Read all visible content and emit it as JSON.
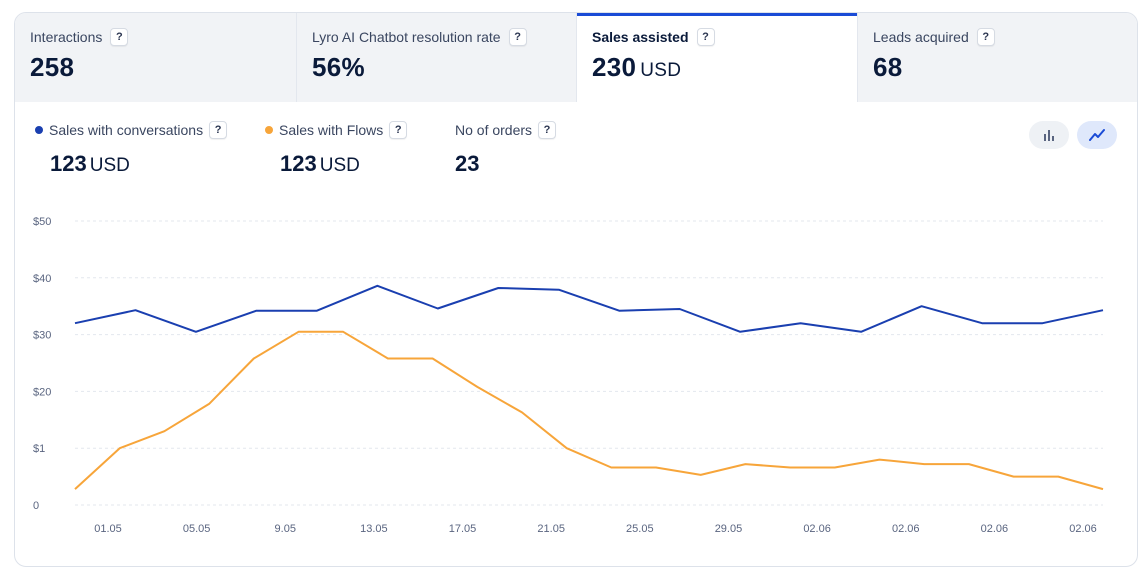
{
  "tabs": [
    {
      "label": "Interactions",
      "value": "258",
      "unit": "",
      "help": "?"
    },
    {
      "label": "Lyro AI Chatbot resolution rate",
      "value": "56%",
      "unit": "",
      "help": "?"
    },
    {
      "label": "Sales assisted",
      "value": "230",
      "unit": "USD",
      "help": "?",
      "active": true
    },
    {
      "label": "Leads acquired",
      "value": "68",
      "unit": "",
      "help": "?"
    }
  ],
  "legend": [
    {
      "label": "Sales with conversations",
      "value": "123",
      "unit": "USD",
      "color": "#1a3fb0",
      "help": "?"
    },
    {
      "label": "Sales with Flows",
      "value": "123",
      "unit": "USD",
      "color": "#f7a53a",
      "help": "?"
    },
    {
      "label": "No of orders",
      "value": "23",
      "unit": "",
      "help": "?"
    }
  ],
  "view_toggle": {
    "bar_icon": "bar-chart-icon",
    "line_icon": "line-chart-icon",
    "active": "line"
  },
  "chart_data": {
    "type": "line",
    "ytick_labels": [
      "0",
      "$1",
      "$20",
      "$30",
      "$40",
      "$50"
    ],
    "ylim": [
      0,
      50
    ],
    "xtick_labels": [
      "01.05",
      "05.05",
      "9.05",
      "13.05",
      "17.05",
      "21.05",
      "25.05",
      "29.05",
      "02.06",
      "02.06",
      "02.06",
      "02.06"
    ],
    "grid": true,
    "series": [
      {
        "name": "Sales with conversations",
        "color": "#1a3fb0",
        "values": [
          32,
          34.3,
          30.5,
          34.2,
          34.2,
          38.6,
          34.6,
          38.2,
          37.9,
          34.2,
          34.5,
          30.5,
          32,
          30.5,
          35,
          32,
          32,
          34.3
        ]
      },
      {
        "name": "Sales with Flows",
        "color": "#f7a53a",
        "values": [
          2.8,
          10,
          13,
          17.8,
          25.8,
          30.5,
          30.5,
          25.8,
          25.8,
          20.8,
          16.3,
          10,
          6.6,
          6.6,
          5.3,
          7.2,
          6.6,
          6.6,
          8,
          7.2,
          7.2,
          5,
          5,
          2.8
        ]
      }
    ]
  }
}
